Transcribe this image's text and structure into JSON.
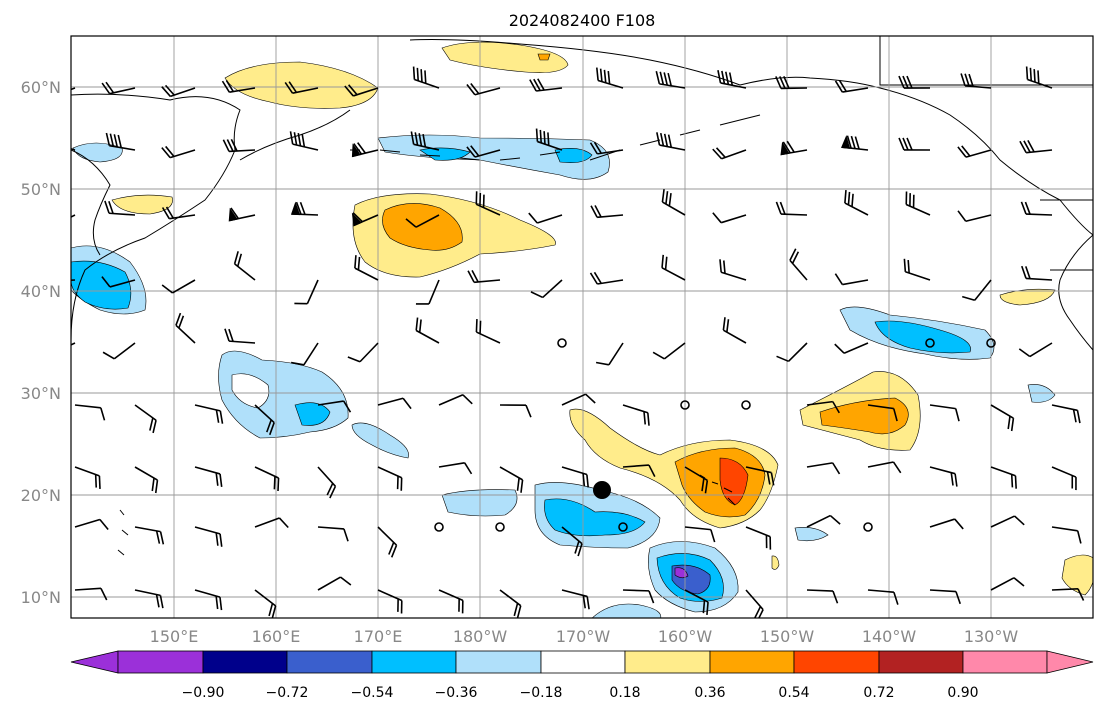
{
  "title": "2024082400 F108",
  "lat_labels": [
    "60°N",
    "50°N",
    "40°N",
    "30°N",
    "20°N",
    "10°N"
  ],
  "lon_labels": [
    "150°E",
    "160°E",
    "170°E",
    "180°W",
    "170°W",
    "160°W",
    "150°W",
    "140°W",
    "130°W"
  ],
  "colorbar": {
    "ticks": [
      "−0.90",
      "−0.72",
      "−0.54",
      "−0.36",
      "−0.18",
      "0.18",
      "0.36",
      "0.54",
      "0.72",
      "0.90"
    ],
    "colors": [
      "#9b30d9",
      "#00008b",
      "#3a5fcd",
      "#00bfff",
      "#b0e0fa",
      "#ffffff",
      "#ffec8b",
      "#ffa500",
      "#ff4500",
      "#b22222",
      "#ff88aa"
    ]
  },
  "marker": {
    "description": "filled black circle",
    "lat": 20.5,
    "lon": -167.5
  }
}
